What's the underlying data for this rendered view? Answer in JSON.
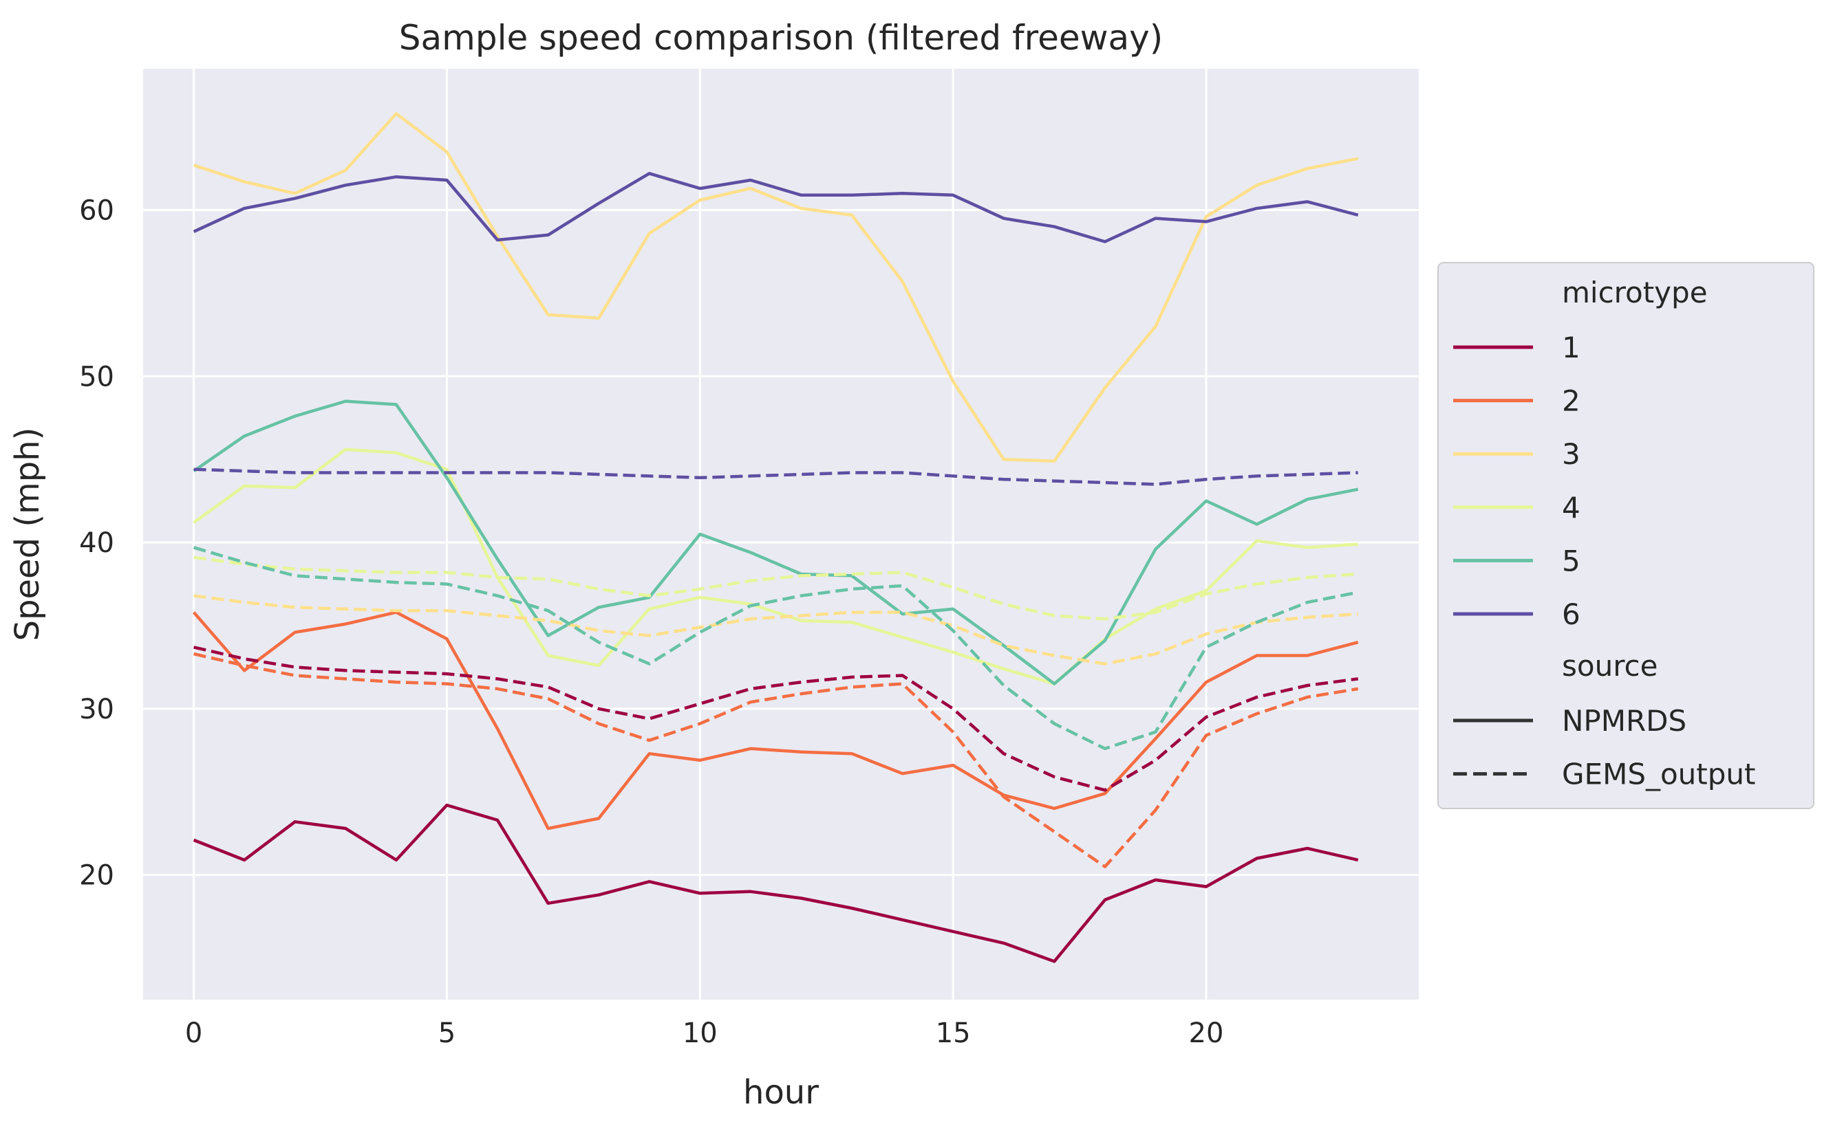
{
  "chart_data": {
    "type": "line",
    "title": "Sample speed comparison (filtered freeway)",
    "xlabel": "hour",
    "ylabel": "Speed (mph)",
    "xlim": [
      -1,
      24.2
    ],
    "ylim": [
      12.5,
      68.5
    ],
    "xticks": [
      0,
      5,
      10,
      15,
      20
    ],
    "yticks": [
      20,
      30,
      40,
      50,
      60
    ],
    "grid": true,
    "legend_placement": "outside-right",
    "legend": {
      "hue_title": "microtype",
      "style_title": "source",
      "style_entries": [
        {
          "label": "NPMRDS",
          "dash": "solid"
        },
        {
          "label": "GEMS_output",
          "dash": "dashed"
        }
      ]
    },
    "x": [
      0,
      1,
      2,
      3,
      4,
      5,
      6,
      7,
      8,
      9,
      10,
      11,
      12,
      13,
      14,
      15,
      16,
      17,
      18,
      19,
      20,
      21,
      22,
      23
    ],
    "series": [
      {
        "name": "1",
        "color": "#9e0142",
        "source": "NPMRDS",
        "values": [
          22.1,
          20.9,
          23.2,
          22.8,
          20.9,
          24.2,
          23.3,
          18.3,
          18.8,
          19.6,
          18.9,
          19.0,
          18.6,
          18.0,
          17.3,
          16.6,
          15.9,
          14.8,
          18.5,
          19.7,
          19.3,
          21.0,
          21.6,
          20.9
        ]
      },
      {
        "name": "2",
        "color": "#f46d43",
        "source": "NPMRDS",
        "values": [
          35.8,
          32.3,
          34.6,
          35.1,
          35.8,
          34.2,
          28.8,
          22.8,
          23.4,
          27.3,
          26.9,
          27.6,
          27.4,
          27.3,
          26.1,
          26.6,
          24.8,
          24.0,
          24.9,
          28.2,
          31.6,
          33.2,
          33.2,
          34.0
        ]
      },
      {
        "name": "3",
        "color": "#fee08b",
        "source": "NPMRDS",
        "values": [
          62.7,
          61.7,
          61.0,
          62.4,
          65.8,
          63.5,
          58.4,
          53.7,
          53.5,
          58.6,
          60.6,
          61.3,
          60.1,
          59.7,
          55.7,
          49.7,
          45.0,
          44.9,
          49.3,
          53.0,
          59.6,
          61.5,
          62.5,
          63.1
        ]
      },
      {
        "name": "4",
        "color": "#e6f598",
        "source": "NPMRDS",
        "values": [
          41.2,
          43.4,
          43.3,
          45.6,
          45.4,
          44.4,
          37.9,
          33.2,
          32.6,
          36.0,
          36.7,
          36.3,
          35.3,
          35.2,
          34.3,
          33.4,
          32.4,
          31.5,
          34.2,
          36.0,
          37.1,
          40.1,
          39.7,
          39.9
        ]
      },
      {
        "name": "5",
        "color": "#66c2a5",
        "source": "NPMRDS",
        "values": [
          44.3,
          46.4,
          47.6,
          48.5,
          48.3,
          43.9,
          39.0,
          34.4,
          36.1,
          36.7,
          40.5,
          39.4,
          38.1,
          38.0,
          35.7,
          36.0,
          33.8,
          31.5,
          34.1,
          39.6,
          42.5,
          41.1,
          42.6,
          43.2
        ]
      },
      {
        "name": "6",
        "color": "#5e4fa2",
        "source": "NPMRDS",
        "values": [
          58.7,
          60.1,
          60.7,
          61.5,
          62.0,
          61.8,
          58.2,
          58.5,
          60.4,
          62.2,
          61.3,
          61.8,
          60.9,
          60.9,
          61.0,
          60.9,
          59.5,
          59.0,
          58.1,
          59.5,
          59.3,
          60.1,
          60.5,
          59.7
        ]
      },
      {
        "name": "1",
        "color": "#9e0142",
        "source": "GEMS_output",
        "values": [
          33.7,
          33.0,
          32.5,
          32.3,
          32.2,
          32.1,
          31.8,
          31.3,
          30.0,
          29.4,
          30.3,
          31.2,
          31.6,
          31.9,
          32.0,
          30.0,
          27.3,
          25.9,
          25.1,
          26.9,
          29.5,
          30.7,
          31.4,
          31.8
        ]
      },
      {
        "name": "2",
        "color": "#f46d43",
        "source": "GEMS_output",
        "values": [
          33.3,
          32.6,
          32.0,
          31.8,
          31.6,
          31.5,
          31.2,
          30.6,
          29.1,
          28.1,
          29.1,
          30.4,
          30.9,
          31.3,
          31.5,
          28.6,
          24.7,
          22.6,
          20.5,
          23.9,
          28.4,
          29.7,
          30.7,
          31.2
        ]
      },
      {
        "name": "3",
        "color": "#fee08b",
        "source": "GEMS_output",
        "values": [
          36.8,
          36.4,
          36.1,
          36.0,
          35.9,
          35.9,
          35.6,
          35.3,
          34.7,
          34.4,
          34.9,
          35.4,
          35.6,
          35.8,
          35.8,
          35.0,
          33.8,
          33.2,
          32.7,
          33.3,
          34.5,
          35.2,
          35.5,
          35.7
        ]
      },
      {
        "name": "4",
        "color": "#e6f598",
        "source": "GEMS_output",
        "values": [
          39.1,
          38.7,
          38.4,
          38.3,
          38.2,
          38.2,
          37.9,
          37.8,
          37.2,
          36.8,
          37.2,
          37.7,
          38.0,
          38.1,
          38.2,
          37.3,
          36.3,
          35.6,
          35.4,
          35.8,
          36.9,
          37.5,
          37.9,
          38.1
        ]
      },
      {
        "name": "5",
        "color": "#66c2a5",
        "source": "GEMS_output",
        "values": [
          39.7,
          38.8,
          38.0,
          37.8,
          37.6,
          37.5,
          36.8,
          35.9,
          34.0,
          32.7,
          34.6,
          36.2,
          36.8,
          37.2,
          37.4,
          34.7,
          31.4,
          29.1,
          27.6,
          28.6,
          33.7,
          35.2,
          36.4,
          37.0
        ]
      },
      {
        "name": "6",
        "color": "#5e4fa2",
        "source": "GEMS_output",
        "values": [
          44.4,
          44.3,
          44.2,
          44.2,
          44.2,
          44.2,
          44.2,
          44.2,
          44.1,
          44.0,
          43.9,
          44.0,
          44.1,
          44.2,
          44.2,
          44.0,
          43.8,
          43.7,
          43.6,
          43.5,
          43.8,
          44.0,
          44.1,
          44.2
        ]
      }
    ]
  }
}
